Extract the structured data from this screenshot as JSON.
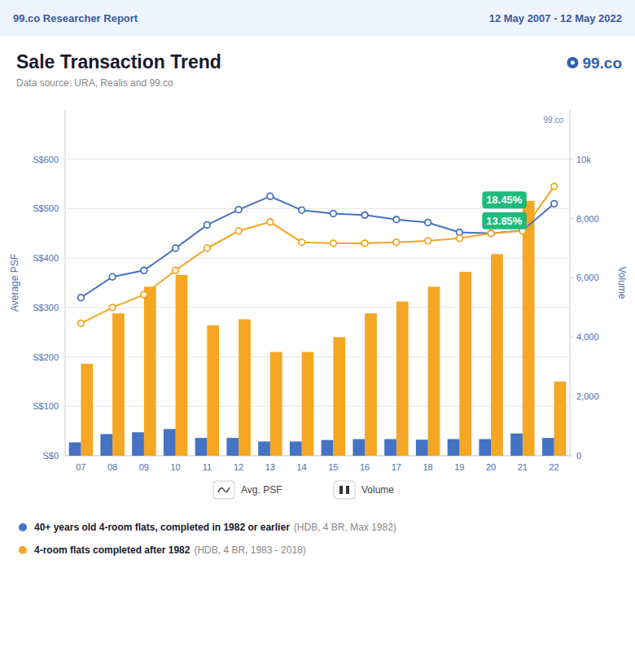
{
  "chart_data": {
    "type": "bar",
    "title": "Sale Transaction Trend",
    "subtitle": "Data source: URA, Realis and 99.co",
    "header": {
      "left": "99.co Researcher Report",
      "right": "12 May 2007 - 12 May 2022"
    },
    "brand": "99.co",
    "y_label": "Average PSF",
    "y2_label": "Volume",
    "categories": [
      "07",
      "08",
      "09",
      "10",
      "11",
      "12",
      "13",
      "14",
      "15",
      "16",
      "17",
      "18",
      "19",
      "20",
      "21",
      "22"
    ],
    "series": [
      {
        "type": "bar",
        "axis": "y2",
        "color": "#F5A623",
        "values": [
          3100,
          4800,
          5700,
          6100,
          4400,
          4600,
          3500,
          3500,
          4000,
          4800,
          5200,
          5700,
          6200,
          6800,
          8600,
          2500
        ]
      },
      {
        "type": "bar",
        "axis": "y2",
        "color": "#4472C4",
        "values": [
          450,
          730,
          790,
          900,
          600,
          600,
          480,
          480,
          530,
          560,
          560,
          540,
          560,
          560,
          750,
          600
        ]
      },
      {
        "type": "line",
        "color": "#4472C4",
        "marker": "circle",
        "values": [
          320,
          362,
          375,
          420,
          467,
          498,
          525,
          497,
          490,
          487,
          478,
          472,
          452,
          450,
          456,
          510
        ]
      },
      {
        "type": "line",
        "color": "#F5A623",
        "marker": "circle",
        "values": [
          268,
          300,
          326,
          375,
          420,
          455,
          473,
          432,
          430,
          430,
          432,
          435,
          440,
          450,
          455,
          545
        ]
      }
    ],
    "ylim": [
      0,
      700
    ],
    "yticks": [
      {
        "value": 0,
        "label": "S$0"
      },
      {
        "value": 100,
        "label": "S$100"
      },
      {
        "value": 200,
        "label": "S$200"
      },
      {
        "value": 300,
        "label": "S$300"
      },
      {
        "value": 400,
        "label": "S$400"
      },
      {
        "value": 500,
        "label": "S$500"
      },
      {
        "value": 600,
        "label": "S$600"
      }
    ],
    "y2lim": [
      0,
      11667
    ],
    "y2ticks": [
      0,
      {
        "value": 2000,
        "label": "2,000"
      },
      {
        "value": 4000,
        "label": "4,000"
      },
      {
        "value": 6000,
        "label": "6,000"
      },
      {
        "value": 8000,
        "label": "8,000"
      },
      {
        "value": 10000,
        "label": "10k"
      }
    ],
    "grid": true,
    "annotations": [
      {
        "text": "18.45%",
        "y": 510
      },
      {
        "text": "13.85%",
        "y": 468
      }
    ],
    "annotation_color": "#17B978",
    "mini_legend": [
      "Avg. PSF",
      "Volume"
    ],
    "groups": [
      {
        "label": "40+ years old 4-room flats, completed in 1982 or earlier",
        "detail": "(HDB, 4 BR, Max 1982)",
        "color": "#4472C4"
      },
      {
        "label": "4-room flats completed after 1982",
        "detail": "(HDB, 4 BR, 1983 - 2018)",
        "color": "#F5A623"
      }
    ]
  }
}
